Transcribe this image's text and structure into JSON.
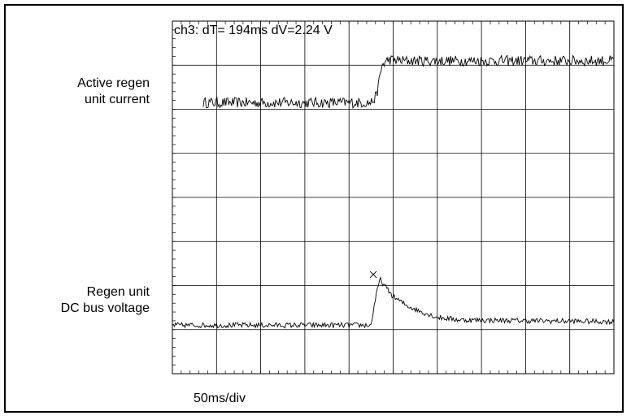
{
  "chart_data": {
    "type": "line",
    "cursor_readout": "ch3: dT= 194ms dV=2.24 V",
    "timebase": "50ms/div",
    "x_unit": "div",
    "xlim": [
      0,
      10
    ],
    "ylim": [
      0,
      8
    ],
    "grid": true,
    "series": [
      {
        "name": "Active regen unit current",
        "name_lines": [
          "Active regen",
          "unit current"
        ],
        "x": [
          0.7,
          4.5,
          4.62,
          4.75,
          4.9,
          5.2,
          10
        ],
        "y": [
          6.15,
          6.15,
          6.3,
          7.0,
          7.13,
          7.1,
          7.1
        ],
        "noise": 0.12
      },
      {
        "name": "Regen unit DC bus voltage",
        "name_lines": [
          "Regen unit",
          "DC bus voltage"
        ],
        "x": [
          0,
          4.5,
          4.58,
          4.7,
          4.8,
          5.0,
          5.3,
          5.6,
          6.0,
          6.5,
          10
        ],
        "y": [
          1.1,
          1.1,
          1.6,
          2.15,
          2.0,
          1.75,
          1.55,
          1.42,
          1.28,
          1.22,
          1.18
        ],
        "noise": 0.06
      }
    ],
    "cursor_marker": {
      "x": 4.55,
      "y": 2.25
    }
  }
}
